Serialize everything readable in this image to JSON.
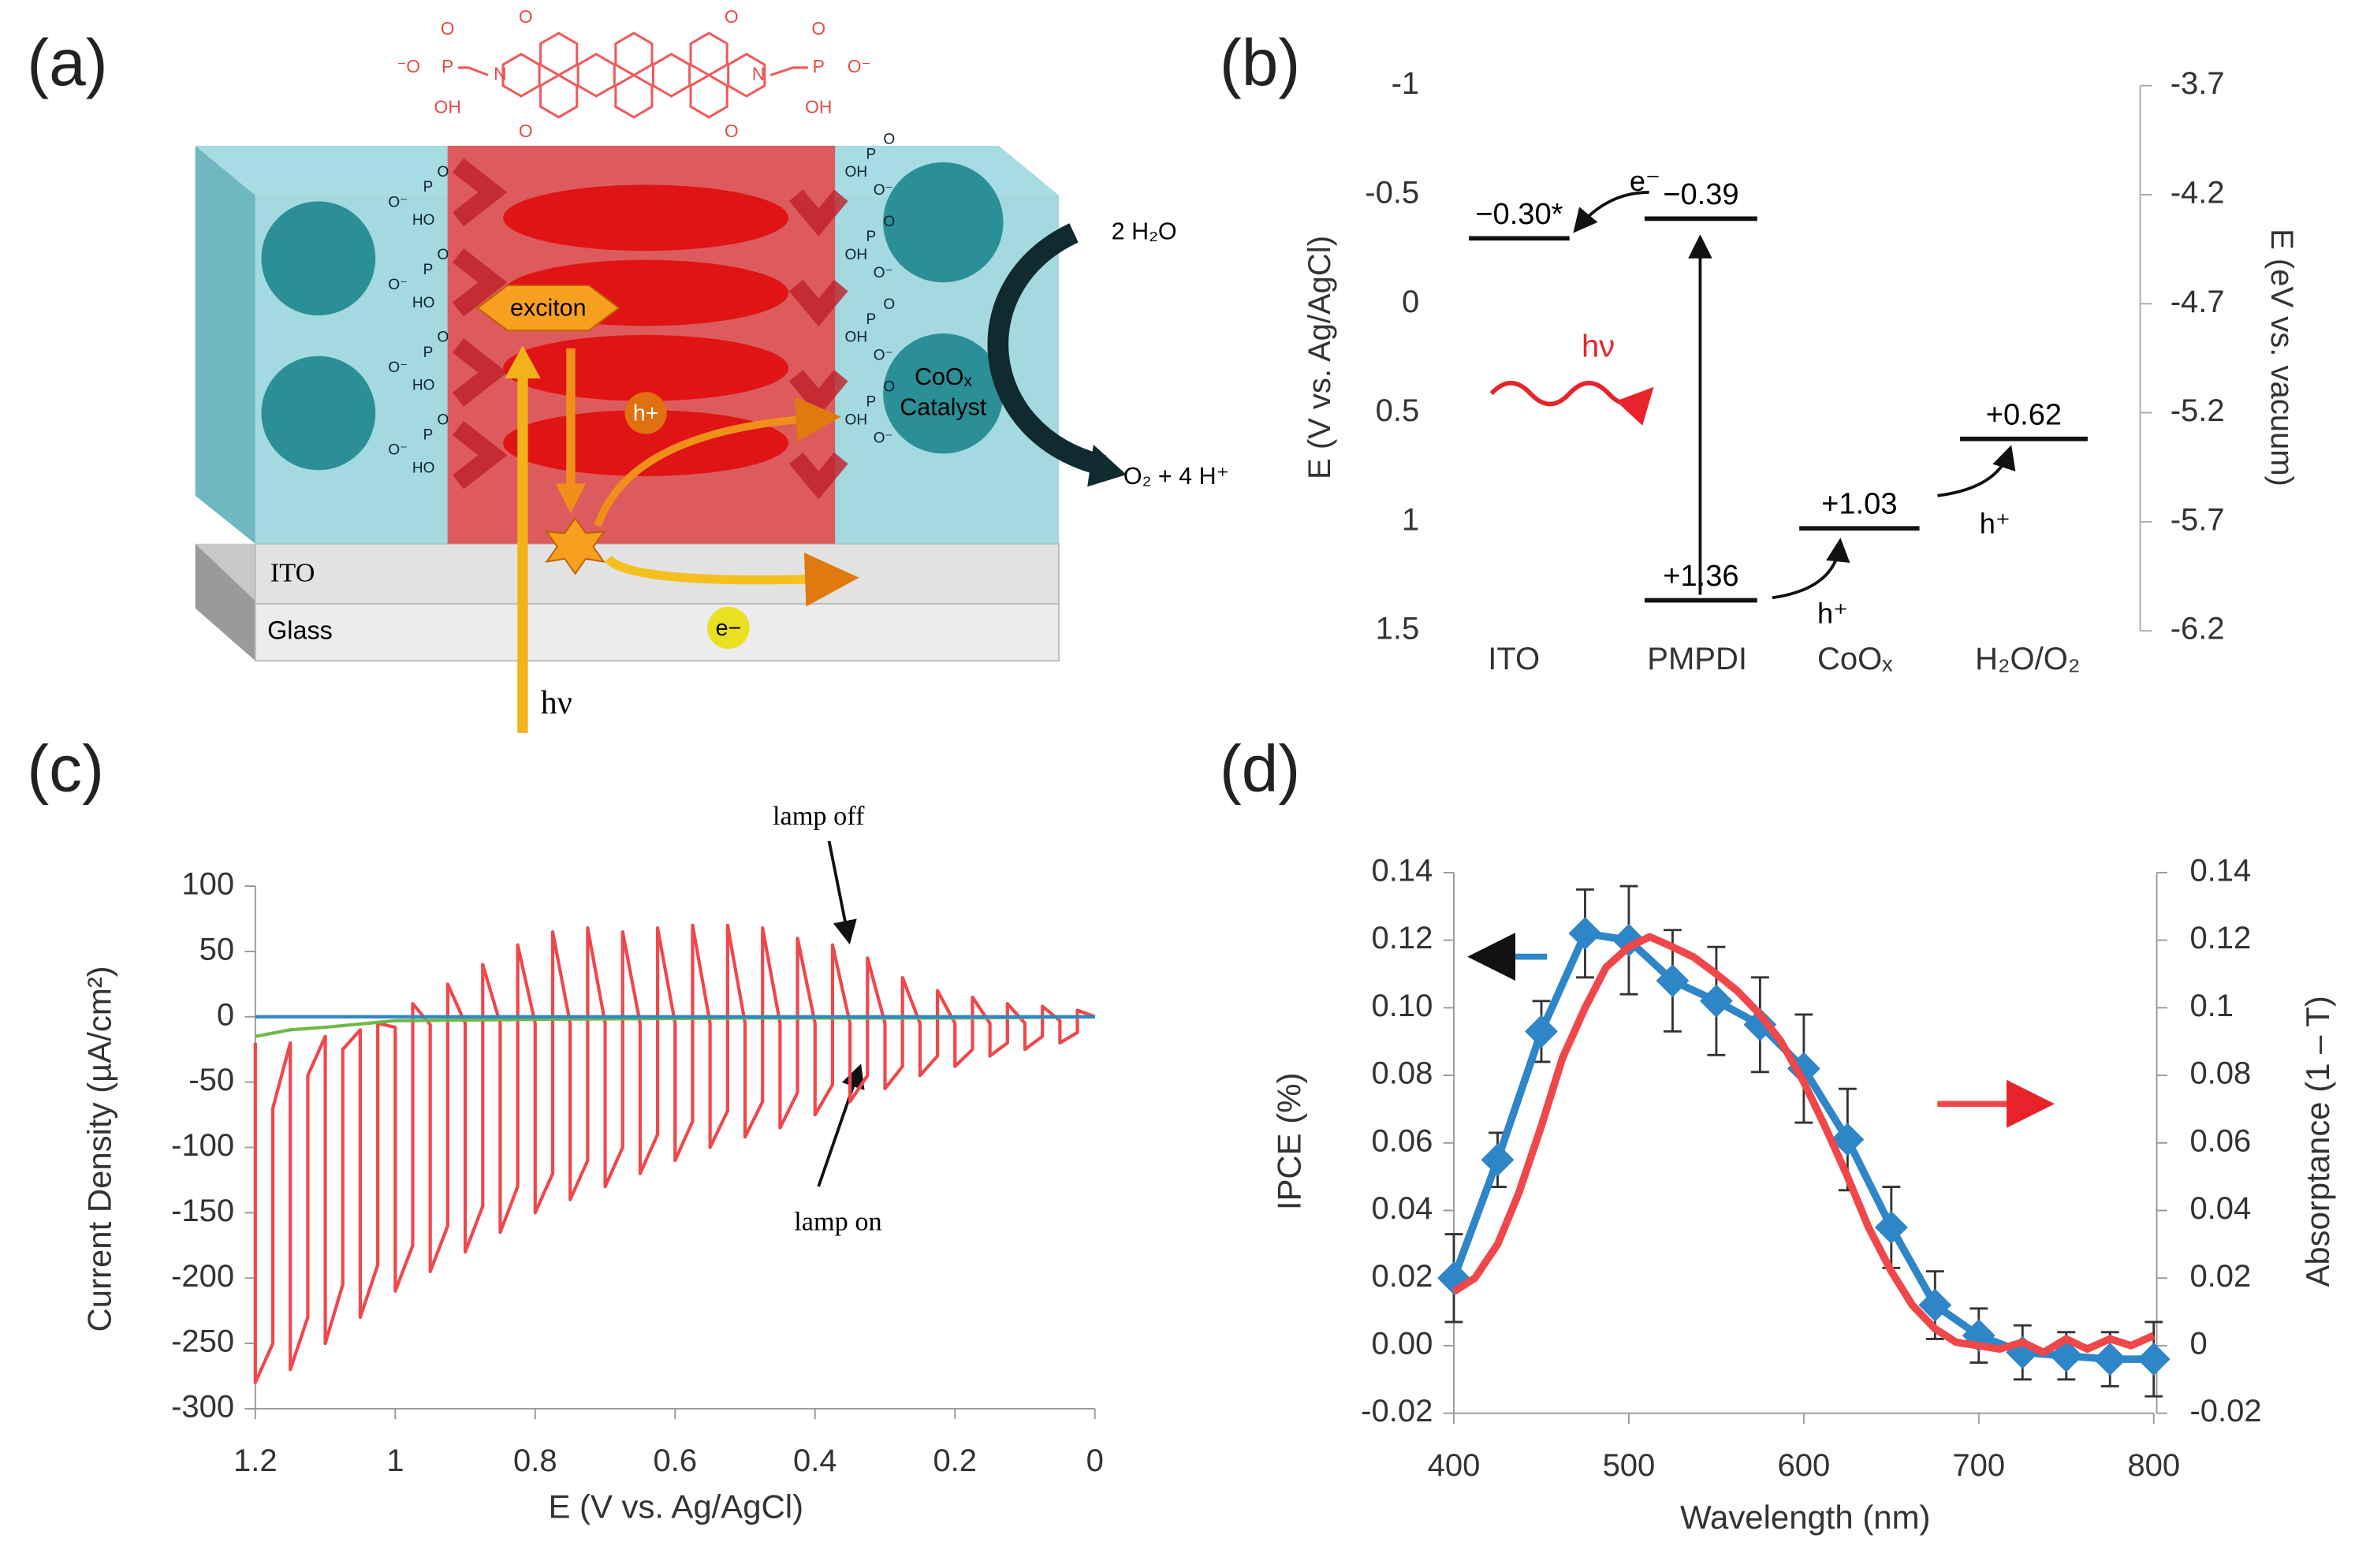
{
  "panel_a": {
    "label": "(a)",
    "molecule": [
      "O",
      "O",
      "O",
      "O",
      "N",
      "N",
      "⁻O",
      "P",
      "O",
      "OH",
      "P",
      "O",
      "O⁻",
      "OH"
    ],
    "exciton": "exciton",
    "hole": "h+",
    "catalyst": [
      "CoOₓ",
      "Catalyst"
    ],
    "water": "2 H₂O",
    "products": "O₂ + 4 H⁺",
    "ito": "ITO",
    "glass": "Glass",
    "electron": "e−",
    "light": "hν",
    "linkers_left": [
      "O⁻",
      "P",
      "HO",
      "O",
      "O⁻",
      "P",
      "HO",
      "O",
      "O⁻",
      "P",
      "HO",
      "O",
      "O⁻",
      "P",
      "HO",
      "O"
    ],
    "linkers_right": [
      "OH",
      "P",
      "O⁻",
      "O",
      "OH",
      "P",
      "O⁻",
      "O",
      "OH",
      "P",
      "O⁻",
      "O",
      "OH",
      "P",
      "O⁻",
      "O"
    ]
  },
  "panel_b": {
    "label": "(b)",
    "ylabel": "E (V vs. Ag/AgCl)",
    "y2label": "E (eV vs. vacuum)",
    "ylim": [
      -1,
      1.5
    ],
    "yticks": [
      -1,
      -0.5,
      0,
      0.5,
      1,
      1.5
    ],
    "y2lim": [
      -3.7,
      -6.2
    ],
    "y2ticks": [
      -3.7,
      -4.2,
      -4.7,
      -5.2,
      -5.7,
      -6.2
    ],
    "columns": [
      "ITO",
      "PMPDI",
      "CoOₓ",
      "H₂O/O₂"
    ],
    "levels": [
      {
        "value": -0.3,
        "label": "−0.30*"
      },
      {
        "value": -0.39,
        "label": "−0.39"
      },
      {
        "value": 1.36,
        "label": "+1.36"
      },
      {
        "value": 1.03,
        "label": "+1.03"
      },
      {
        "value": 0.62,
        "label": "+0.62"
      }
    ],
    "electron": "e⁻",
    "holes": [
      "h⁺",
      "h⁺"
    ],
    "light": "hν"
  },
  "chart_data": [
    {
      "type": "line",
      "label": "(c)",
      "xlabel": "E (V vs. Ag/AgCl)",
      "ylabel": "Current Density (µA/cm²)",
      "xlim": [
        1.2,
        0
      ],
      "xticks": [
        1.2,
        1,
        0.8,
        0.6,
        0.4,
        0.2,
        0
      ],
      "ylim": [
        -300,
        100
      ],
      "yticks": [
        100,
        50,
        0,
        -50,
        -100,
        -150,
        -200,
        -250,
        -300
      ],
      "annotations": [
        "lamp off",
        "lamp on"
      ],
      "series": [
        {
          "color": "#f0474a",
          "x": [
            1.2,
            1.2,
            1.175,
            1.175,
            1.15,
            1.15,
            1.125,
            1.125,
            1.1,
            1.1,
            1.075,
            1.075,
            1.05,
            1.05,
            1.025,
            1.025,
            1.0,
            1.0,
            0.975,
            0.975,
            0.95,
            0.95,
            0.925,
            0.925,
            0.9,
            0.9,
            0.875,
            0.875,
            0.85,
            0.85,
            0.825,
            0.825,
            0.8,
            0.8,
            0.775,
            0.775,
            0.75,
            0.75,
            0.725,
            0.725,
            0.7,
            0.7,
            0.675,
            0.675,
            0.65,
            0.65,
            0.625,
            0.625,
            0.6,
            0.6,
            0.575,
            0.575,
            0.55,
            0.55,
            0.525,
            0.525,
            0.5,
            0.5,
            0.475,
            0.475,
            0.45,
            0.45,
            0.425,
            0.425,
            0.4,
            0.4,
            0.375,
            0.375,
            0.35,
            0.35,
            0.325,
            0.325,
            0.3,
            0.3,
            0.275,
            0.275,
            0.25,
            0.25,
            0.225,
            0.225,
            0.2,
            0.2,
            0.175,
            0.175,
            0.15,
            0.15,
            0.125,
            0.125,
            0.1,
            0.1,
            0.075,
            0.075,
            0.05,
            0.05,
            0.025,
            0.025,
            0
          ],
          "values": [
            -20,
            -280,
            -250,
            -70,
            -20,
            -270,
            -230,
            -45,
            -15,
            -250,
            -205,
            -25,
            -10,
            -230,
            -190,
            -5,
            -8,
            -210,
            -175,
            10,
            -6,
            -195,
            -160,
            25,
            -5,
            -180,
            -145,
            40,
            -5,
            -165,
            -130,
            55,
            -5,
            -150,
            -120,
            65,
            -5,
            -140,
            -110,
            68,
            -5,
            -130,
            -100,
            65,
            -5,
            -120,
            -90,
            68,
            -5,
            -110,
            -80,
            70,
            -5,
            -100,
            -72,
            70,
            -5,
            -92,
            -65,
            68,
            -5,
            -85,
            -58,
            60,
            -5,
            -75,
            -52,
            55,
            -5,
            -65,
            -45,
            45,
            -5,
            -55,
            -38,
            30,
            -5,
            -45,
            -30,
            20,
            -5,
            -38,
            -25,
            15,
            -5,
            -30,
            -20,
            10,
            -5,
            -25,
            -15,
            8,
            -3,
            -20,
            -12,
            5,
            0
          ]
        },
        {
          "color": "#70b84a",
          "x": [
            1.2,
            1.15,
            1.1,
            1.0,
            0.8,
            0.5,
            0.2,
            0
          ],
          "values": [
            -15,
            -10,
            -8,
            -3,
            -2,
            -1,
            -1,
            0
          ]
        },
        {
          "color": "#2e86c8",
          "x": [
            1.2,
            0
          ],
          "values": [
            0,
            0
          ]
        }
      ]
    },
    {
      "type": "line",
      "label": "(d)",
      "xlabel": "Wavelength (nm)",
      "ylabel": "IPCE (%)",
      "y2label": "Absorptance (1 – T)",
      "xlim": [
        400,
        800
      ],
      "xticks": [
        400,
        500,
        600,
        700,
        800
      ],
      "ylim": [
        -0.02,
        0.14
      ],
      "yticks": [
        -0.02,
        {
          "value": 0,
          "label": "0.00"
        },
        0.02,
        0.04,
        0.06,
        0.08,
        {
          "value": 0.1,
          "label": "0.10"
        },
        0.12,
        0.14
      ],
      "y2lim": [
        -0.02,
        0.14
      ],
      "y2ticks": [
        -0.02,
        0,
        0.02,
        0.04,
        0.06,
        0.08,
        0.1,
        0.12,
        0.14
      ],
      "series": [
        {
          "color": "#2e86c8",
          "marker": "diamond",
          "x": [
            400,
            425,
            450,
            475,
            500,
            525,
            550,
            575,
            600,
            625,
            650,
            675,
            700,
            725,
            750,
            775,
            800
          ],
          "values": [
            0.02,
            0.055,
            0.093,
            0.122,
            0.12,
            0.108,
            0.102,
            0.095,
            0.082,
            0.061,
            0.035,
            0.012,
            0.003,
            -0.002,
            -0.003,
            -0.004,
            -0.004
          ],
          "errors": [
            0.013,
            0.008,
            0.009,
            0.013,
            0.016,
            0.015,
            0.016,
            0.014,
            0.016,
            0.015,
            0.012,
            0.01,
            0.008,
            0.008,
            0.007,
            0.008,
            0.011
          ]
        },
        {
          "color": "#f0474a",
          "axis": "y2",
          "x": [
            400,
            412,
            425,
            437,
            450,
            462,
            475,
            487,
            500,
            512,
            525,
            537,
            550,
            562,
            575,
            587,
            600,
            612,
            625,
            637,
            650,
            662,
            675,
            687,
            700,
            712,
            725,
            737,
            750,
            762,
            775,
            787,
            800
          ],
          "values": [
            0.016,
            0.02,
            0.03,
            0.045,
            0.065,
            0.085,
            0.1,
            0.112,
            0.118,
            0.121,
            0.118,
            0.115,
            0.11,
            0.105,
            0.098,
            0.09,
            0.078,
            0.065,
            0.05,
            0.035,
            0.022,
            0.012,
            0.005,
            0.001,
            0,
            -0.001,
            0.001,
            -0.002,
            0.002,
            -0.001,
            0.002,
            0,
            0.003
          ]
        }
      ]
    }
  ]
}
